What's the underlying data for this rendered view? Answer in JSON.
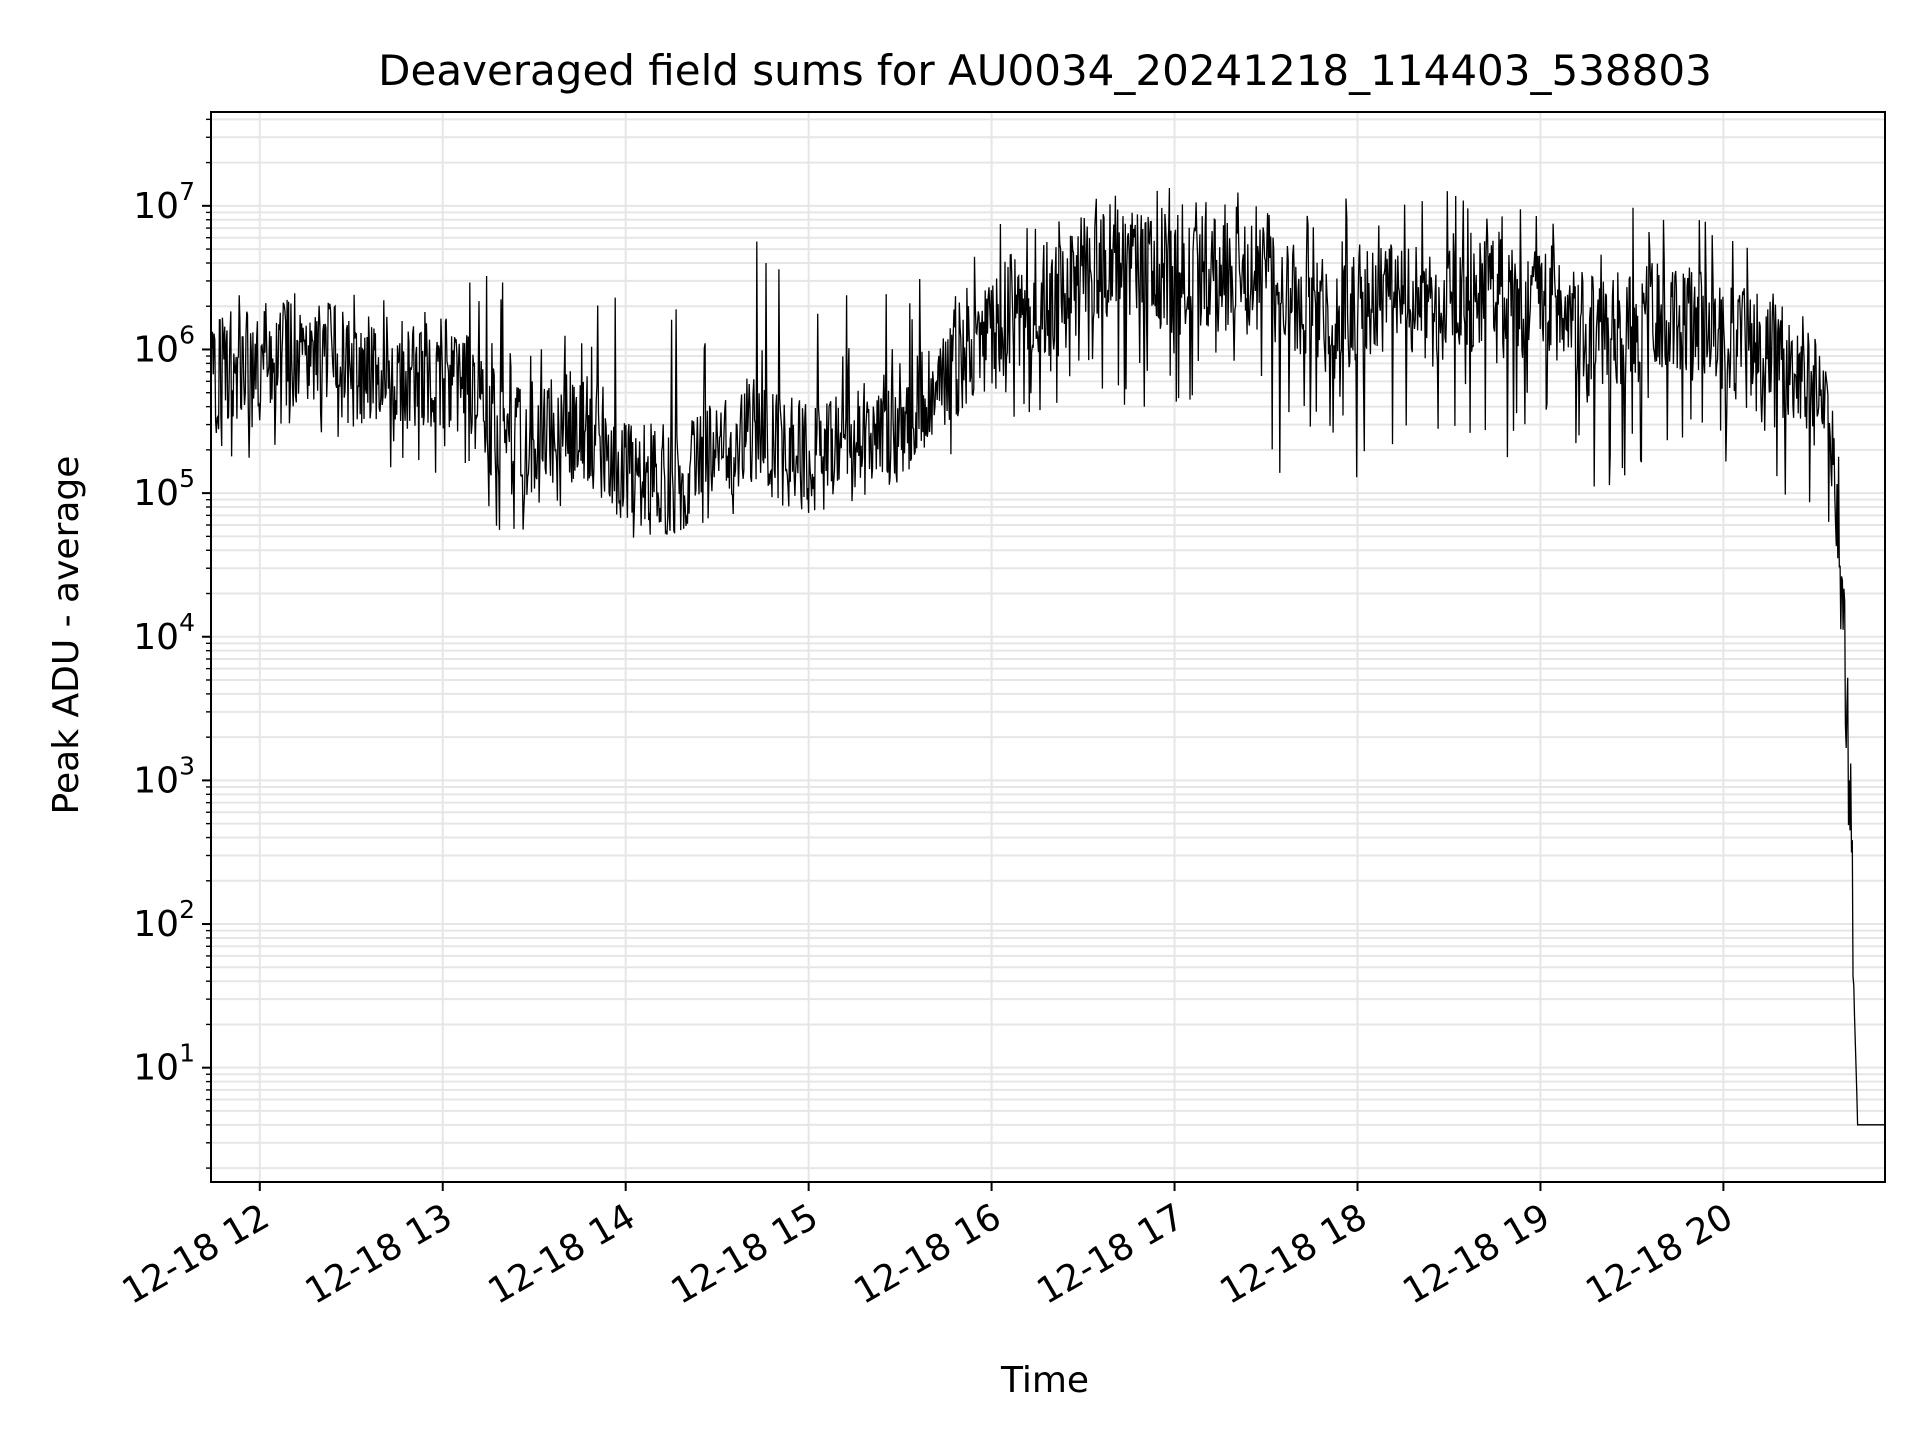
{
  "chart_data": {
    "type": "line",
    "title": "Deaveraged field sums for AU0034_20241218_114403_538803",
    "xlabel": "Time",
    "ylabel": "Peak ADU - average",
    "yscale": "log",
    "xlim": [
      "2024-12-18 11:44",
      "2024-12-18 20:53"
    ],
    "ylim": [
      1.6,
      45000000
    ],
    "grid": true,
    "line_color": "#000000",
    "grid_color": "#e6e6e6",
    "x_ticks": [
      {
        "t": "2024-12-18 12:00",
        "label": "12-18 12"
      },
      {
        "t": "2024-12-18 13:00",
        "label": "12-18 13"
      },
      {
        "t": "2024-12-18 14:00",
        "label": "12-18 14"
      },
      {
        "t": "2024-12-18 15:00",
        "label": "12-18 15"
      },
      {
        "t": "2024-12-18 16:00",
        "label": "12-18 16"
      },
      {
        "t": "2024-12-18 17:00",
        "label": "12-18 17"
      },
      {
        "t": "2024-12-18 18:00",
        "label": "12-18 18"
      },
      {
        "t": "2024-12-18 19:00",
        "label": "12-18 19"
      },
      {
        "t": "2024-12-18 20:00",
        "label": "12-18 20"
      }
    ],
    "y_ticks": [
      {
        "value": 10,
        "base": "10",
        "exp": "1"
      },
      {
        "value": 100,
        "base": "10",
        "exp": "2"
      },
      {
        "value": 1000,
        "base": "10",
        "exp": "3"
      },
      {
        "value": 10000,
        "base": "10",
        "exp": "4"
      },
      {
        "value": 100000,
        "base": "10",
        "exp": "5"
      },
      {
        "value": 1000000,
        "base": "10",
        "exp": "6"
      },
      {
        "value": 10000000,
        "base": "10",
        "exp": "7"
      }
    ],
    "series": [
      {
        "x": [
          "2024-12-18 11:44",
          "2024-12-18 11:50",
          "2024-12-18 12:00",
          "2024-12-18 12:10",
          "2024-12-18 12:20",
          "2024-12-18 12:30",
          "2024-12-18 12:40",
          "2024-12-18 12:50",
          "2024-12-18 13:00",
          "2024-12-18 13:10",
          "2024-12-18 13:20",
          "2024-12-18 13:30",
          "2024-12-18 13:40",
          "2024-12-18 13:50",
          "2024-12-18 14:00",
          "2024-12-18 14:10",
          "2024-12-18 14:20",
          "2024-12-18 14:30",
          "2024-12-18 14:40",
          "2024-12-18 14:50",
          "2024-12-18 15:00",
          "2024-12-18 15:10",
          "2024-12-18 15:20",
          "2024-12-18 15:30",
          "2024-12-18 15:40",
          "2024-12-18 15:50",
          "2024-12-18 16:00",
          "2024-12-18 16:10",
          "2024-12-18 16:20",
          "2024-12-18 16:30",
          "2024-12-18 16:40",
          "2024-12-18 16:50",
          "2024-12-18 17:00",
          "2024-12-18 17:10",
          "2024-12-18 17:20",
          "2024-12-18 17:30",
          "2024-12-18 17:40",
          "2024-12-18 17:50",
          "2024-12-18 18:00",
          "2024-12-18 18:10",
          "2024-12-18 18:20",
          "2024-12-18 18:30",
          "2024-12-18 18:40",
          "2024-12-18 18:50",
          "2024-12-18 19:00",
          "2024-12-18 19:10",
          "2024-12-18 19:20",
          "2024-12-18 19:30",
          "2024-12-18 19:40",
          "2024-12-18 19:50",
          "2024-12-18 20:00",
          "2024-12-18 20:10",
          "2024-12-18 20:20",
          "2024-12-18 20:30",
          "2024-12-18 20:36",
          "2024-12-18 20:38",
          "2024-12-18 20:40",
          "2024-12-18 20:42",
          "2024-12-18 20:44",
          "2024-12-18 20:53"
        ],
        "y": [
          600000,
          800000,
          900000,
          1000000,
          900000,
          700000,
          800000,
          600000,
          700000,
          500000,
          250000,
          200000,
          300000,
          250000,
          150000,
          120000,
          130000,
          180000,
          300000,
          200000,
          180000,
          200000,
          250000,
          300000,
          600000,
          900000,
          1200000,
          2500000,
          2000000,
          3500000,
          4000000,
          3500000,
          3000000,
          3500000,
          3000000,
          3000000,
          2000000,
          1500000,
          1800000,
          2500000,
          2200000,
          2000000,
          2500000,
          2000000,
          2500000,
          1500000,
          1200000,
          1500000,
          1800000,
          1500000,
          1200000,
          1000000,
          800000,
          500000,
          200000,
          50000,
          5000,
          300,
          4,
          4
        ],
        "low": [
          300000,
          150000,
          180000,
          250000,
          200000,
          150000,
          150000,
          150000,
          120000,
          70000,
          50000,
          55000,
          70000,
          60000,
          40000,
          50000,
          55000,
          55000,
          75000,
          80000,
          80000,
          90000,
          110000,
          120000,
          160000,
          200000,
          260000,
          350000,
          300000,
          650000,
          450000,
          350000,
          280000,
          400000,
          350000,
          100000,
          50000,
          100000,
          120000,
          200000,
          180000,
          160000,
          220000,
          150000,
          220000,
          130000,
          90000,
          150000,
          200000,
          150000,
          120000,
          120000,
          80000,
          80000,
          50000,
          20000,
          2000,
          100,
          4,
          4
        ],
        "high": [
          1500000,
          2200000,
          3500000,
          2500000,
          3000000,
          4500000,
          5500000,
          2000000,
          1800000,
          4500000,
          3500000,
          2500000,
          2500000,
          5000000,
          7000000,
          4000000,
          4500000,
          2500000,
          5500000,
          6000000,
          2500000,
          3500000,
          4500000,
          3000000,
          5000000,
          9000000,
          9500000,
          8000000,
          10000000,
          11000000,
          13000000,
          19000000,
          14000000,
          12000000,
          15000000,
          13000000,
          12000000,
          11000000,
          12000000,
          13000000,
          11000000,
          13000000,
          14000000,
          10000000,
          10000000,
          9500000,
          9000000,
          10000000,
          12000000,
          8500000,
          8000000,
          6500000,
          4000000,
          2500000,
          800000,
          200000,
          20000,
          1000,
          4,
          4
        ]
      }
    ]
  }
}
